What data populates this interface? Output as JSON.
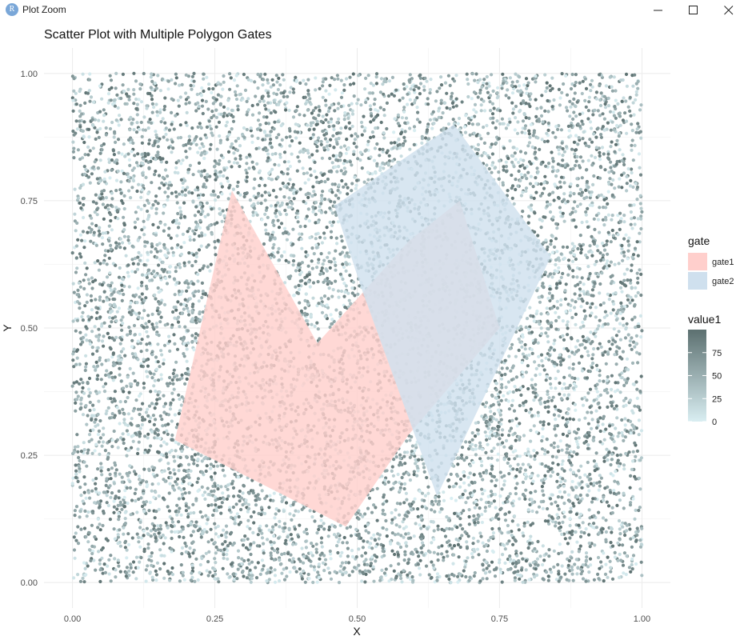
{
  "window": {
    "title": "Plot Zoom",
    "app_icon_letter": "R",
    "controls": [
      "minimize",
      "maximize",
      "close"
    ]
  },
  "chart_data": {
    "type": "scatter",
    "title": "Scatter Plot with Multiple Polygon Gates",
    "xlabel": "X",
    "ylabel": "Y",
    "xlim": [
      -0.05,
      1.05
    ],
    "ylim": [
      -0.05,
      1.05
    ],
    "x_ticks": [
      0,
      0.25,
      0.5,
      0.75,
      1.0
    ],
    "x_tick_labels": [
      "0.00",
      "0.25",
      "0.50",
      "0.75",
      "1.00"
    ],
    "y_ticks": [
      0,
      0.25,
      0.5,
      0.75,
      1.0
    ],
    "y_tick_labels": [
      "0.00",
      "0.25",
      "0.50",
      "0.75",
      "1.00"
    ],
    "grid": true,
    "points": {
      "count": 10000,
      "x_range": [
        0,
        1
      ],
      "y_range": [
        0,
        1
      ],
      "color_variable": "value1",
      "value_range": [
        0,
        100
      ],
      "distribution": "uniform"
    },
    "gates": [
      {
        "name": "gate1",
        "color": "#f8766d",
        "fill_color": "#ffcfcc",
        "vertices": [
          [
            0.28,
            0.77
          ],
          [
            0.43,
            0.47
          ],
          [
            0.59,
            0.67
          ],
          [
            0.68,
            0.75
          ],
          [
            0.75,
            0.5
          ],
          [
            0.59,
            0.29
          ],
          [
            0.48,
            0.11
          ],
          [
            0.18,
            0.28
          ]
        ]
      },
      {
        "name": "gate2",
        "color": "#00bfc4",
        "fill_color": "#cfe0ee",
        "vertices": [
          [
            0.46,
            0.74
          ],
          [
            0.67,
            0.9
          ],
          [
            0.84,
            0.64
          ],
          [
            0.64,
            0.17
          ],
          [
            0.51,
            0.57
          ]
        ]
      }
    ],
    "legend": {
      "placement": "right",
      "gate_title": "gate",
      "gate_entries": [
        "gate1",
        "gate2"
      ],
      "value_title": "value1",
      "value_breaks": [
        0,
        25,
        50,
        75
      ],
      "value_break_labels": [
        "0",
        "25",
        "50",
        "75"
      ],
      "value_colors": [
        "#d9eef2",
        "#5c7070"
      ]
    }
  }
}
